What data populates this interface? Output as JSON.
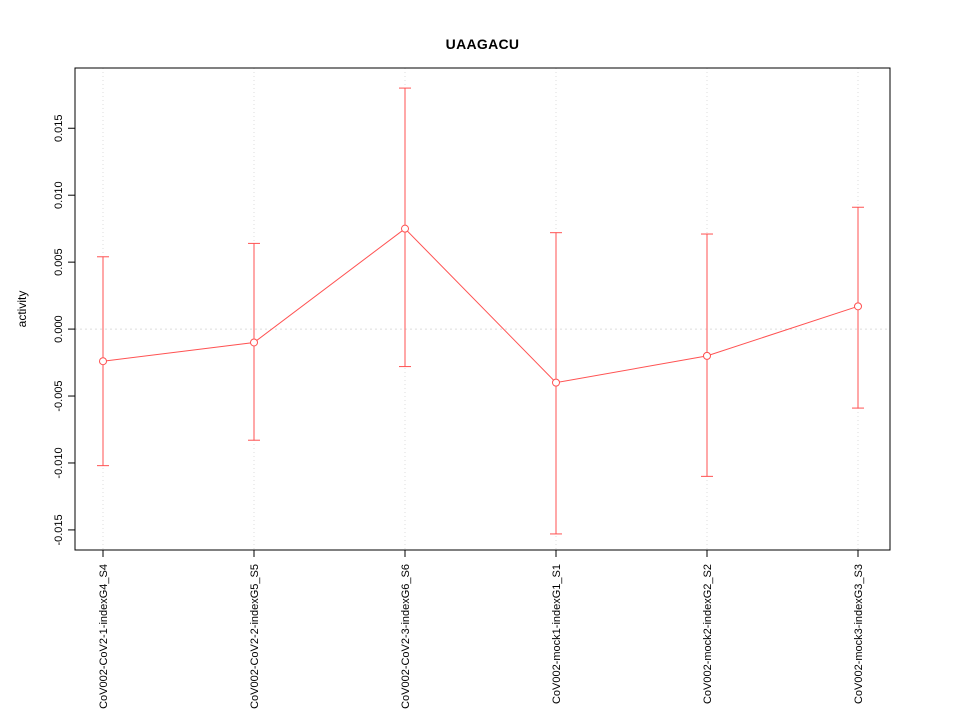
{
  "colors": {
    "series": "#ff5252",
    "marker_fill": "#ffffff",
    "grid": "#dcdcdc",
    "axis": "#000000",
    "text": "#000000",
    "background": "#ffffff"
  },
  "chart_data": {
    "type": "line",
    "title": "UAAGACU",
    "xlabel": "",
    "ylabel": "activity",
    "categories": [
      "CoV002-CoV2-1-indexG4_S4",
      "CoV002-CoV2-2-indexG5_S5",
      "CoV002-CoV2-3-indexG6_S6",
      "CoV002-mock1-indexG1_S1",
      "CoV002-mock2-indexG2_S2",
      "CoV002-mock3-indexG3_S3"
    ],
    "series": [
      {
        "name": "activity",
        "values": [
          -0.0024,
          -0.001,
          0.0075,
          -0.004,
          -0.002,
          0.0017
        ],
        "error_low": [
          -0.0102,
          -0.0083,
          -0.0028,
          -0.0153,
          -0.011,
          -0.0059
        ],
        "error_high": [
          0.0054,
          0.0064,
          0.018,
          0.0072,
          0.0071,
          0.0091
        ]
      }
    ],
    "ylim": [
      -0.0165,
      0.0195
    ],
    "yticks": {
      "values": [
        -0.015,
        -0.01,
        -0.005,
        0.0,
        0.005,
        0.01,
        0.015
      ],
      "labels": [
        "-0.015",
        "-0.010",
        "-0.005",
        "0.000",
        "0.005",
        "0.010",
        "0.015"
      ]
    },
    "grid": {
      "vertical_dotted_at_categories": true,
      "horizontal_dotted_at_zero": true
    },
    "legend": "none",
    "marker": "open-circle",
    "error_bars": true
  }
}
